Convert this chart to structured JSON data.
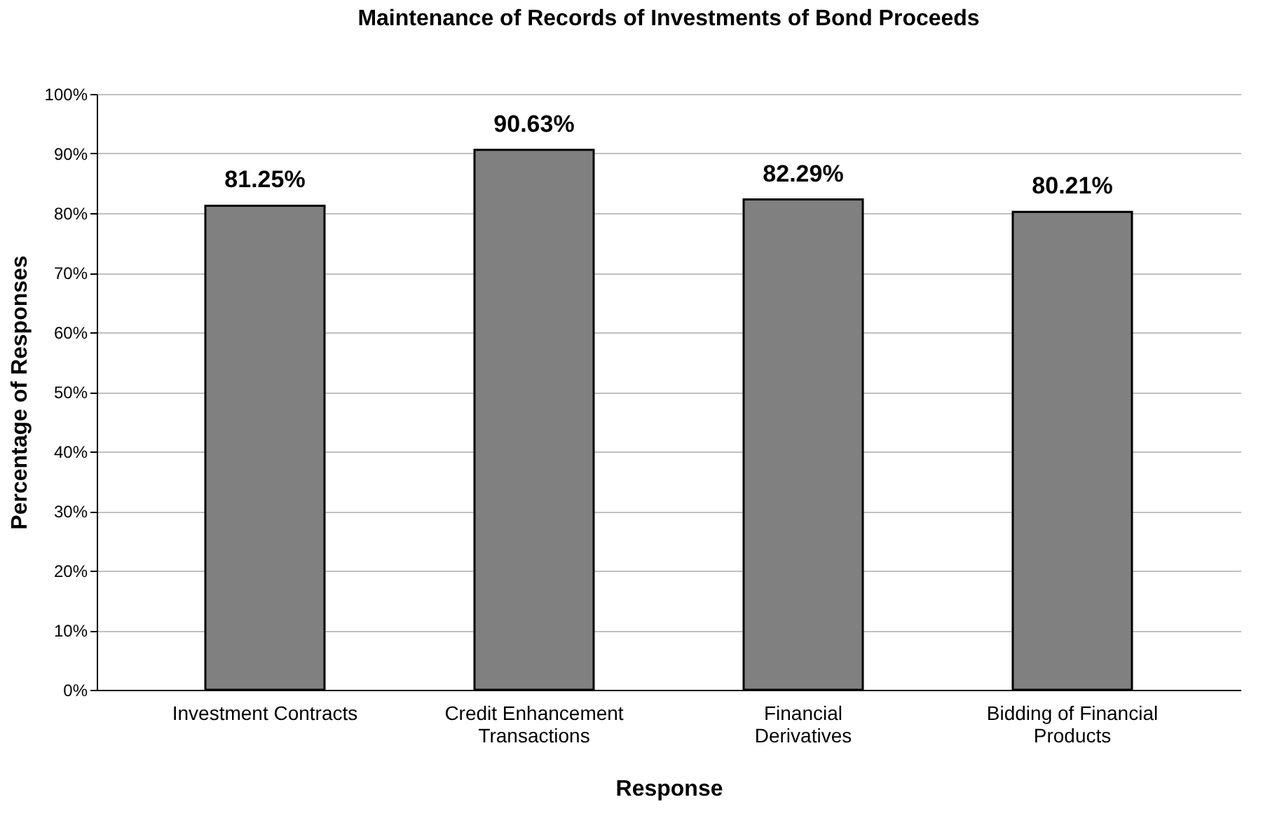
{
  "chart_data": {
    "type": "bar",
    "title": "Maintenance of Records of Investments of Bond Proceeds",
    "xlabel": "Response",
    "ylabel": "Percentage of Responses",
    "categories": [
      "Investment Contracts",
      "Credit Enhancement Transactions",
      "Financial Derivatives",
      "Bidding of Financial Products"
    ],
    "values": [
      81.25,
      90.63,
      82.29,
      80.21
    ],
    "value_labels": [
      "81.25%",
      "90.63%",
      "82.29%",
      "80.21%"
    ],
    "color": "#808080",
    "ylim": [
      0,
      100
    ],
    "yticks": [
      {
        "value": 0,
        "label": "0%"
      },
      {
        "value": 10,
        "label": "10%"
      },
      {
        "value": 20,
        "label": "20%"
      },
      {
        "value": 30,
        "label": "30%"
      },
      {
        "value": 40,
        "label": "40%"
      },
      {
        "value": 50,
        "label": "50%"
      },
      {
        "value": 60,
        "label": "60%"
      },
      {
        "value": 70,
        "label": "70%"
      },
      {
        "value": 80,
        "label": "80%"
      },
      {
        "value": 90,
        "label": "90%"
      },
      {
        "value": 100,
        "label": "100%"
      }
    ],
    "grid": "y"
  }
}
